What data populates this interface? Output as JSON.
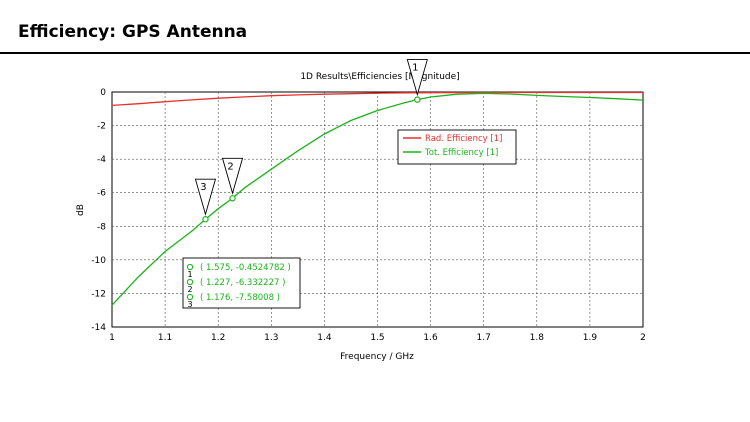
{
  "slide": {
    "title": "Efficiency: GPS Antenna"
  },
  "chart_data": {
    "type": "line",
    "title": "1D Results\\Efficiencies [Magnitude]",
    "xlabel": "Frequency / GHz",
    "ylabel": "dB",
    "xlim": [
      1,
      2
    ],
    "ylim": [
      -14,
      0
    ],
    "xticks": [
      "1",
      "1.1",
      "1.2",
      "1.3",
      "1.4",
      "1.5",
      "1.6",
      "1.7",
      "1.8",
      "1.9",
      "2"
    ],
    "yticks": [
      "0",
      "-2",
      "-4",
      "-6",
      "-8",
      "-10",
      "-12",
      "-14"
    ],
    "grid": true,
    "legend_position": "right",
    "series": [
      {
        "name": "Rad. Efficiency [1]",
        "color": "#e8312f",
        "points": [
          [
            1.0,
            -0.8
          ],
          [
            1.05,
            -0.7
          ],
          [
            1.1,
            -0.58
          ],
          [
            1.15,
            -0.47
          ],
          [
            1.2,
            -0.37
          ],
          [
            1.25,
            -0.29
          ],
          [
            1.3,
            -0.22
          ],
          [
            1.35,
            -0.17
          ],
          [
            1.4,
            -0.13
          ],
          [
            1.45,
            -0.1
          ],
          [
            1.5,
            -0.07
          ],
          [
            1.55,
            -0.05
          ],
          [
            1.6,
            -0.04
          ],
          [
            1.7,
            -0.03
          ],
          [
            1.8,
            -0.03
          ],
          [
            1.9,
            -0.03
          ],
          [
            2.0,
            -0.03
          ]
        ]
      },
      {
        "name": "Tot. Efficiency [1]",
        "color": "#1bb31b",
        "points": [
          [
            1.0,
            -12.7
          ],
          [
            1.05,
            -11.0
          ],
          [
            1.1,
            -9.5
          ],
          [
            1.15,
            -8.3
          ],
          [
            1.176,
            -7.58
          ],
          [
            1.2,
            -6.95
          ],
          [
            1.227,
            -6.33
          ],
          [
            1.25,
            -5.7
          ],
          [
            1.3,
            -4.6
          ],
          [
            1.35,
            -3.5
          ],
          [
            1.4,
            -2.5
          ],
          [
            1.45,
            -1.7
          ],
          [
            1.5,
            -1.1
          ],
          [
            1.55,
            -0.65
          ],
          [
            1.575,
            -0.45
          ],
          [
            1.6,
            -0.3
          ],
          [
            1.65,
            -0.13
          ],
          [
            1.7,
            -0.08
          ],
          [
            1.75,
            -0.12
          ],
          [
            1.8,
            -0.2
          ],
          [
            1.85,
            -0.27
          ],
          [
            1.9,
            -0.33
          ],
          [
            1.95,
            -0.4
          ],
          [
            2.0,
            -0.48
          ]
        ]
      }
    ],
    "markers": [
      {
        "id": "1",
        "x": 1.575,
        "y": -0.4524782,
        "label": "( 1.575, -0.4524782 )"
      },
      {
        "id": "2",
        "x": 1.227,
        "y": -6.332227,
        "label": "( 1.227, -6.332227 )"
      },
      {
        "id": "3",
        "x": 1.176,
        "y": -7.58008,
        "label": "( 1.176, -7.58008 )"
      }
    ]
  }
}
